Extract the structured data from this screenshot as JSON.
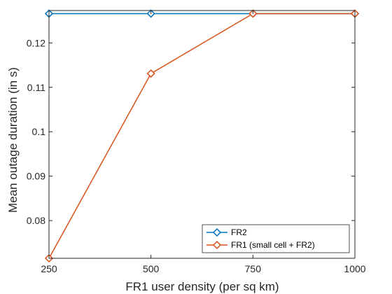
{
  "chart_data": {
    "type": "line",
    "title": "",
    "xlabel": "FR1 user density (per sq km)",
    "ylabel": "Mean outage duration (in s)",
    "x": [
      250,
      500,
      750,
      1000
    ],
    "x_ticks": [
      250,
      500,
      750,
      1000
    ],
    "x_tick_labels": [
      "250",
      "500",
      "750",
      "1000"
    ],
    "y_ticks": [
      0.08,
      0.09,
      0.1,
      0.11,
      0.12
    ],
    "y_tick_labels": [
      "0.08",
      "0.09",
      "0.1",
      "0.11",
      "0.12"
    ],
    "xlim": [
      250,
      1000
    ],
    "ylim": [
      0.0715,
      0.1273
    ],
    "grid": false,
    "legend_position": "bottom-right",
    "series": [
      {
        "name": "FR2",
        "color": "#0072BD",
        "marker": "diamond",
        "values": [
          0.1266,
          0.1266,
          0.1266,
          0.1266
        ]
      },
      {
        "name": "FR1 (small cell + FR2)",
        "color": "#D95319",
        "marker": "diamond",
        "values": [
          0.0715,
          0.1131,
          0.1266,
          0.1266
        ]
      }
    ]
  }
}
